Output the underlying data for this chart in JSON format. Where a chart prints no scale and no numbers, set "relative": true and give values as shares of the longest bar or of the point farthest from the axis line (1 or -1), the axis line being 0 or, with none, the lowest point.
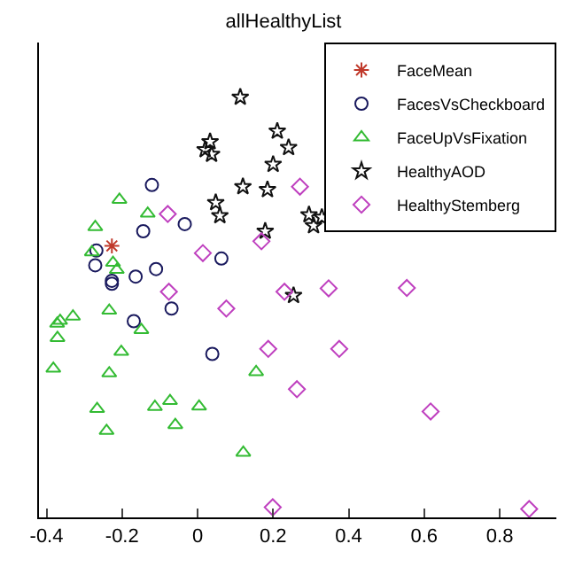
{
  "chart_data": {
    "type": "scatter",
    "title": "allHealthyList",
    "relative": true,
    "xlim": [
      -0.42,
      0.95
    ],
    "xticks": [
      -0.4,
      -0.2,
      0,
      0.2,
      0.4,
      0.6,
      0.8
    ],
    "legend": "top right",
    "tick_labels": "x",
    "series": [
      {
        "name": "FaceMean",
        "color": "#c0392b",
        "marker": "cross",
        "x": [
          -0.227
        ],
        "values": [
          0.646
        ]
      },
      {
        "name": "FacesVsCheckboard",
        "color": "#1a1a5e",
        "marker": "circle",
        "x": [
          -0.121,
          -0.034,
          -0.144,
          -0.268,
          -0.271,
          -0.11,
          -0.164,
          -0.227,
          -0.227,
          0.063,
          -0.169,
          -0.069,
          0.039
        ],
        "values": [
          0.791,
          0.698,
          0.681,
          0.635,
          0.6,
          0.591,
          0.573,
          0.563,
          0.556,
          0.616,
          0.467,
          0.497,
          0.389
        ]
      },
      {
        "name": "FaceUpVsFixation",
        "color": "#33bb33",
        "marker": "triangle",
        "x": [
          -0.207,
          -0.132,
          -0.271,
          -0.28,
          -0.224,
          -0.214,
          -0.234,
          -0.33,
          -0.364,
          -0.372,
          -0.371,
          -0.382,
          -0.149,
          -0.202,
          -0.234,
          -0.266,
          -0.241,
          -0.113,
          -0.073,
          -0.059,
          0.004,
          0.121,
          0.155
        ],
        "values": [
          0.756,
          0.723,
          0.691,
          0.631,
          0.606,
          0.589,
          0.492,
          0.478,
          0.468,
          0.461,
          0.427,
          0.354,
          0.446,
          0.394,
          0.343,
          0.258,
          0.206,
          0.263,
          0.277,
          0.22,
          0.264,
          0.154,
          0.346
        ]
      },
      {
        "name": "HealthyAOD",
        "color": "#111111",
        "marker": "star",
        "x": [
          0.113,
          0.211,
          0.241,
          0.033,
          0.02,
          0.037,
          0.2,
          0.12,
          0.185,
          0.048,
          0.059,
          0.295,
          0.329,
          0.307,
          0.179,
          0.254
        ],
        "values": [
          1.0,
          0.919,
          0.88,
          0.894,
          0.875,
          0.864,
          0.84,
          0.787,
          0.78,
          0.749,
          0.718,
          0.72,
          0.714,
          0.694,
          0.681,
          0.528
        ]
      },
      {
        "name": "HealthyStemberg",
        "color": "#bf40bf",
        "marker": "diamond",
        "x": [
          0.271,
          -0.079,
          0.169,
          0.014,
          -0.076,
          0.23,
          0.347,
          0.554,
          0.076,
          0.187,
          0.375,
          0.263,
          0.617,
          0.199,
          0.878
        ],
        "values": [
          0.787,
          0.722,
          0.657,
          0.629,
          0.537,
          0.537,
          0.545,
          0.546,
          0.497,
          0.401,
          0.401,
          0.305,
          0.252,
          0.024,
          0.02
        ]
      }
    ]
  }
}
